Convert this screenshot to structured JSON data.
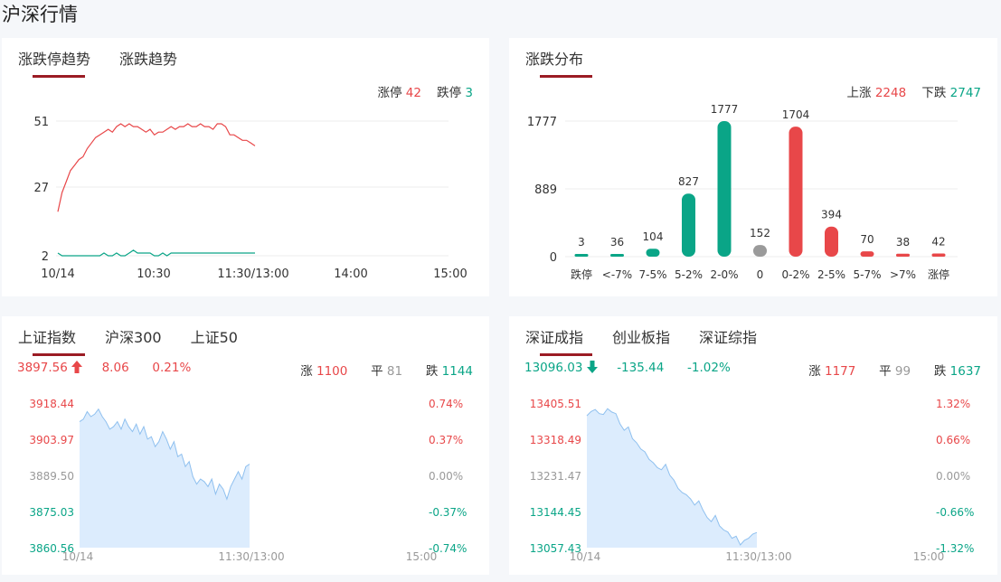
{
  "page_title": "沪深行情",
  "panel1": {
    "tabs": [
      "涨跌停趋势",
      "涨跌趋势"
    ],
    "limit_up_label": "涨停",
    "limit_up_value": "42",
    "limit_down_label": "跌停",
    "limit_down_value": "3",
    "y_ticks": [
      "51",
      "27",
      "2"
    ],
    "x_ticks": [
      "10/14",
      "10:30",
      "11:30/13:00",
      "14:00",
      "15:00"
    ]
  },
  "panel2": {
    "tabs": [
      "涨跌分布"
    ],
    "up_label": "上涨",
    "up_value": "2248",
    "down_label": "下跌",
    "down_value": "2747",
    "y_ticks": [
      "1777",
      "889",
      "0"
    ]
  },
  "panel3": {
    "tabs": [
      "上证指数",
      "沪深300",
      "上证50"
    ],
    "price": "3897.56",
    "change": "8.06",
    "change_pct": "0.21%",
    "rise_label": "涨",
    "rise_value": "1100",
    "flat_label": "平",
    "flat_value": "81",
    "fall_label": "跌",
    "fall_value": "1144",
    "left_ticks": [
      "3918.44",
      "3903.97",
      "3889.50",
      "3875.03",
      "3860.56"
    ],
    "right_ticks": [
      "0.74%",
      "0.37%",
      "0.00%",
      "-0.37%",
      "-0.74%"
    ],
    "x_ticks": [
      "10/14",
      "11:30/13:00",
      "15:00"
    ]
  },
  "panel4": {
    "tabs": [
      "深证成指",
      "创业板指",
      "深证综指"
    ],
    "price": "13096.03",
    "change": "-135.44",
    "change_pct": "-1.02%",
    "rise_label": "涨",
    "rise_value": "1177",
    "flat_label": "平",
    "flat_value": "99",
    "fall_label": "跌",
    "fall_value": "1637",
    "left_ticks": [
      "13405.51",
      "13318.49",
      "13231.47",
      "13144.45",
      "13057.43"
    ],
    "right_ticks": [
      "1.32%",
      "0.66%",
      "0.00%",
      "-0.66%",
      "-1.32%"
    ],
    "x_ticks": [
      "10/14",
      "11:30/13:00",
      "15:00"
    ]
  },
  "colors": {
    "up": "#e84749",
    "down": "#0aa587",
    "flat": "#9a9a9a",
    "accent": "#9b1c24",
    "area": "#dcecfd",
    "area_line": "#8fc0ef"
  },
  "chart_data": [
    {
      "type": "line",
      "y_ticks": [
        2,
        27,
        51
      ],
      "ylim": [
        2,
        51
      ],
      "series": [
        {
          "name": "涨停",
          "values": [
            18,
            25,
            29,
            33,
            35,
            37,
            38,
            41,
            43,
            45,
            46,
            47,
            48,
            47,
            49,
            50,
            49,
            50,
            49,
            49,
            48,
            47,
            48,
            46,
            47,
            47,
            48,
            49,
            48,
            49,
            49,
            50,
            49,
            49,
            50,
            49,
            49,
            48,
            50,
            50,
            49,
            46,
            46,
            45,
            44,
            44,
            43,
            42
          ]
        },
        {
          "name": "跌停",
          "values": [
            3,
            2,
            2,
            2,
            2,
            2,
            2,
            2,
            2,
            2,
            2,
            3,
            2,
            2,
            3,
            2,
            2,
            3,
            4,
            3,
            3,
            3,
            3,
            2,
            2,
            3,
            2,
            3,
            3,
            3,
            3,
            3,
            3,
            3,
            3,
            3,
            3,
            3,
            3,
            3,
            3,
            3,
            3,
            3,
            3,
            3,
            3,
            3
          ]
        }
      ],
      "x_ticks": [
        "10/14",
        "10:30",
        "11:30/13:00",
        "14:00",
        "15:00"
      ]
    },
    {
      "type": "bar",
      "categories": [
        "跌停",
        "<-7%",
        "7-5%",
        "5-2%",
        "2-0%",
        "0",
        "0-2%",
        "2-5%",
        "5-7%",
        ">7%",
        "涨停"
      ],
      "values": [
        3,
        36,
        104,
        827,
        1777,
        152,
        1704,
        394,
        70,
        38,
        42
      ],
      "y_ticks": [
        0,
        889,
        1777
      ],
      "ylim": [
        0,
        1777
      ]
    },
    {
      "type": "area",
      "ylim": [
        3860.56,
        3918.44
      ],
      "values": [
        3911,
        3912,
        3915,
        3913,
        3914,
        3916,
        3913,
        3911,
        3908,
        3909,
        3911,
        3908,
        3912,
        3909,
        3907,
        3910,
        3906,
        3909,
        3904,
        3905,
        3901,
        3903,
        3907,
        3904,
        3900,
        3903,
        3897,
        3898,
        3893,
        3895,
        3889,
        3886,
        3888,
        3887,
        3885,
        3888,
        3882,
        3886,
        3884,
        3880,
        3885,
        3888,
        3891,
        3888,
        3893,
        3894
      ],
      "x_ticks": [
        "10/14",
        "11:30/13:00",
        "15:00"
      ]
    },
    {
      "type": "area",
      "ylim": [
        13057.43,
        13405.51
      ],
      "values": [
        13375,
        13385,
        13390,
        13380,
        13378,
        13392,
        13384,
        13380,
        13355,
        13340,
        13348,
        13320,
        13310,
        13295,
        13288,
        13270,
        13262,
        13250,
        13245,
        13258,
        13232,
        13220,
        13200,
        13190,
        13185,
        13175,
        13160,
        13170,
        13148,
        13130,
        13120,
        13135,
        13110,
        13100,
        13095,
        13080,
        13085,
        13064,
        13075,
        13080,
        13090,
        13094
      ]
    }
  ]
}
